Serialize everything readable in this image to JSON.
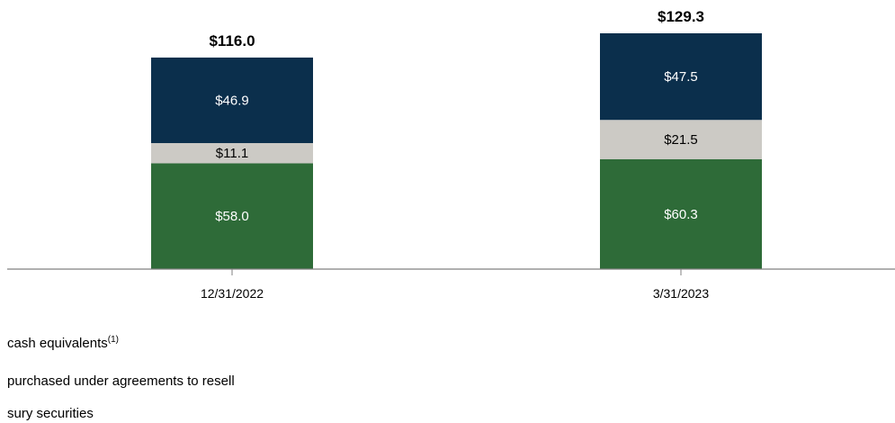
{
  "chart_data": {
    "type": "bar",
    "stacked": true,
    "title": "",
    "xlabel": "",
    "ylabel": "",
    "categories": [
      "12/31/2022",
      "3/31/2023"
    ],
    "totals": [
      "$116.0",
      "$129.3"
    ],
    "total_values": [
      116.0,
      129.3
    ],
    "series": [
      {
        "name": "cash equivalents",
        "name_superscript": "(1)",
        "color": "#2e6b38",
        "label_color": "#ffffff",
        "values": [
          58.0,
          60.3
        ],
        "labels": [
          "$58.0",
          "$60.3"
        ]
      },
      {
        "name": "purchased under agreements to resell",
        "color": "#cccac5",
        "label_color": "#000000",
        "values": [
          11.1,
          21.5
        ],
        "labels": [
          "$11.1",
          "$21.5"
        ]
      },
      {
        "name": "sury securities",
        "color": "#0b2f4c",
        "label_color": "#ffffff",
        "values": [
          46.9,
          47.5
        ],
        "labels": [
          "$46.9",
          "$47.5"
        ]
      }
    ],
    "ylim": [
      0,
      129.3
    ],
    "grid": false,
    "legend_position": "bottom-left"
  }
}
